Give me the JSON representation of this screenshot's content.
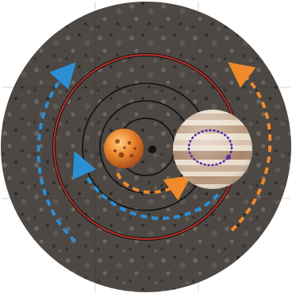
{
  "figure": {
    "background": "#ffffff",
    "disk_color": "#4f4a46",
    "ring_red": "#c0312b",
    "ring_black": "#111111",
    "arrow_blue": "#2b8fd6",
    "arrow_orange": "#f08a2a",
    "orbit_dots": "#5a2ca0"
  },
  "bodies": [
    {
      "name": "orange-planet",
      "icon": "cratered-orange-planet",
      "color": "#e87a2a"
    },
    {
      "name": "gas-giant",
      "icon": "banded-gas-giant",
      "color": "#d9c7b4"
    },
    {
      "name": "barycenter",
      "icon": "black-dot",
      "color": "#111111"
    }
  ],
  "arrows": [
    {
      "name": "outer-left-arrow",
      "color": "blue",
      "direction": "clockwise"
    },
    {
      "name": "inner-left-arrow",
      "color": "blue",
      "direction": "clockwise"
    },
    {
      "name": "outer-right-arrow",
      "color": "orange",
      "direction": "clockwise"
    },
    {
      "name": "inner-bottom-arrow",
      "color": "orange",
      "direction": "clockwise"
    }
  ]
}
